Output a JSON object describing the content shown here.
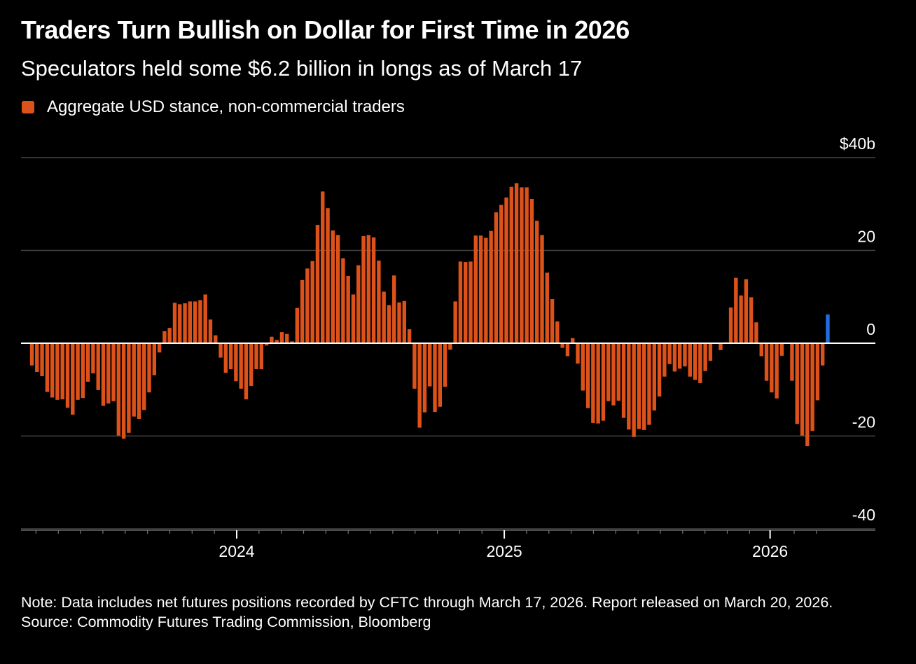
{
  "title": "Traders Turn Bullish on Dollar for First Time in 2026",
  "subtitle": "Speculators held some $6.2 billion in longs as of March 17",
  "legend": {
    "label": "Aggregate USD stance, non-commercial traders"
  },
  "note": "Note: Data includes net futures positions recorded by CFTC through March 17, 2026. Report released on March 20, 2026.",
  "source": "Source: Commodity Futures Trading Commission, Bloomberg",
  "colors": {
    "bar": "#dc521a",
    "highlight": "#1f6fe0",
    "grid": "#444444",
    "zero": "#ffffff"
  },
  "chart_data": {
    "type": "bar",
    "title": "Traders Turn Bullish on Dollar for First Time in 2026",
    "ylabel": "Aggregate USD stance ($ billions)",
    "ylim": [
      -40,
      40
    ],
    "y_ticks": [
      {
        "value": 40,
        "label": "$40b"
      },
      {
        "value": 20,
        "label": "20"
      },
      {
        "value": 0,
        "label": "0"
      },
      {
        "value": -20,
        "label": "-20"
      },
      {
        "value": -40,
        "label": "-40"
      }
    ],
    "x_ticks": [
      {
        "week_index": 40.15,
        "label": "2024"
      },
      {
        "week_index": 92.6,
        "label": "2025"
      },
      {
        "week_index": 144.7,
        "label": "2026"
      }
    ],
    "frequency": "weekly",
    "last_observation": "March 17, 2026",
    "highlight_last": true,
    "values": [
      -4.8,
      -6.2,
      -7.1,
      -10.5,
      -11.7,
      -12.2,
      -12.1,
      -13.9,
      -15.4,
      -12.2,
      -11.8,
      -8.3,
      -6.5,
      -10.1,
      -13.5,
      -13.0,
      -12.5,
      -19.9,
      -20.6,
      -19.3,
      -15.8,
      -16.3,
      -14.4,
      -10.6,
      -6.9,
      -2.0,
      2.6,
      3.3,
      8.7,
      8.4,
      8.6,
      9.0,
      9.0,
      9.3,
      10.5,
      5.1,
      1.7,
      -3.1,
      -6.4,
      -5.6,
      -8.2,
      -9.8,
      -12.1,
      -9.2,
      -5.6,
      -5.6,
      -0.5,
      1.4,
      0.7,
      2.4,
      2.0,
      0.4,
      7.6,
      13.6,
      16.1,
      17.7,
      25.5,
      32.7,
      29.1,
      24.3,
      23.3,
      18.3,
      14.5,
      10.5,
      16.8,
      23.1,
      23.3,
      22.8,
      17.8,
      11.1,
      8.2,
      14.6,
      8.8,
      9.1,
      3.0,
      -9.8,
      -18.2,
      -14.9,
      -9.3,
      -14.8,
      -13.7,
      -9.4,
      -1.4,
      9.0,
      17.6,
      17.5,
      17.6,
      23.2,
      23.2,
      22.7,
      24.2,
      28.2,
      29.8,
      31.4,
      33.7,
      34.5,
      33.6,
      33.6,
      31.1,
      26.4,
      23.3,
      15.2,
      9.5,
      4.7,
      -1.0,
      -2.8,
      1.1,
      -4.4,
      -10.2,
      -14.0,
      -17.2,
      -17.3,
      -16.7,
      -12.5,
      -13.4,
      -12.4,
      -16.1,
      -18.6,
      -20.2,
      -18.5,
      -18.7,
      -17.6,
      -14.5,
      -11.5,
      -7.2,
      -4.5,
      -6.1,
      -5.5,
      -5.0,
      -7.2,
      -7.9,
      -8.6,
      -6.0,
      -3.8,
      -0.1,
      -1.5,
      0.2,
      7.7,
      14.1,
      10.3,
      13.8,
      9.9,
      4.5,
      -2.8,
      -8.1,
      -10.6,
      -11.9,
      -2.7,
      -0.1,
      -8.1,
      -17.4,
      -19.9,
      -22.2,
      -18.9,
      -12.3,
      -4.8,
      6.2
    ]
  }
}
